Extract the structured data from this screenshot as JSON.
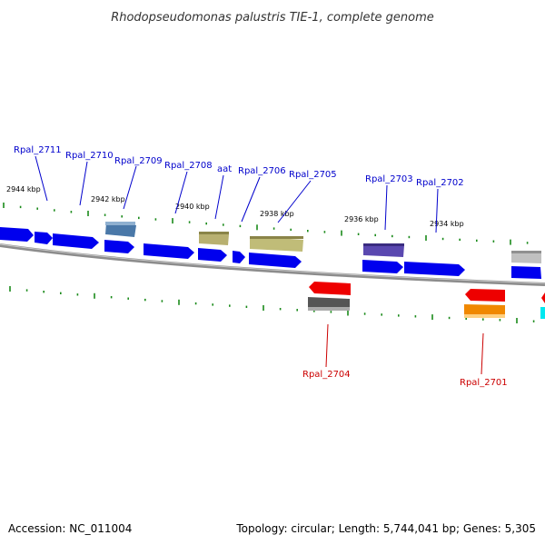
{
  "title": "Rhodopseudomonas palustris TIE-1, complete genome",
  "footer": {
    "accession": "Accession: NC_011004",
    "summary": "Topology: circular; Length: 5,744,041 bp; Genes: 5,305"
  },
  "scale_labels": [
    "2944 kbp",
    "2942 kbp",
    "2940 kbp",
    "2938 kbp",
    "2936 kbp",
    "2934 kbp"
  ],
  "gene_labels_forward": [
    "Rpal_2711",
    "Rpal_2710",
    "Rpal_2709",
    "Rpal_2708",
    "aat",
    "Rpal_2706",
    "Rpal_2705",
    "Rpal_2703",
    "Rpal_2702"
  ],
  "gene_labels_reverse": [
    "Rpal_2704",
    "Rpal_2701"
  ],
  "colors": {
    "forward_label": "#0000cc",
    "reverse_label": "#cc0000",
    "gene_blue": "#0000ee",
    "gene_steel": "#4a78a8",
    "gene_khaki": "#b8b070",
    "gene_purple": "#5a48b0",
    "gene_gray": "#c0c0c0",
    "gene_red": "#ee0000",
    "gene_dark": "#555555",
    "gene_orange": "#f08800",
    "gene_cyan": "#00e8f0",
    "backbone": "#888888",
    "tick": "#1a8a1a"
  }
}
